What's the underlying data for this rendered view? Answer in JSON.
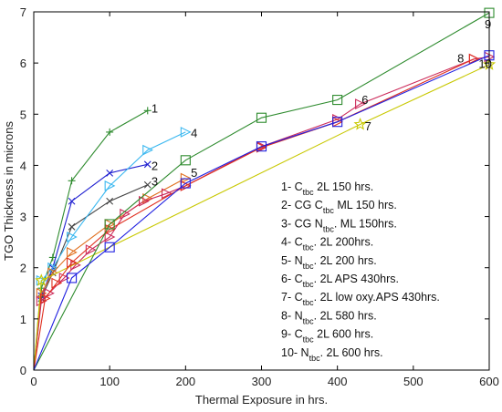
{
  "chart_data": {
    "type": "line",
    "title": "",
    "xlabel": "Thermal Exposure in hrs.",
    "ylabel": "TGO Thickness in microns",
    "xlim": [
      0,
      600
    ],
    "ylim": [
      0,
      7
    ],
    "xticks": [
      0,
      100,
      200,
      300,
      400,
      500,
      600
    ],
    "yticks": [
      0,
      1,
      2,
      3,
      4,
      5,
      6,
      7
    ],
    "grid": false,
    "legend_position": "lower-right",
    "legend": [
      {
        "number": "1- ",
        "main": "C",
        "sub": "tbc",
        "rest": " 2L 150 hrs."
      },
      {
        "number": "2- ",
        "main": "CG C",
        "sub": "tbc",
        "rest": " ML 150 hrs."
      },
      {
        "number": "3- ",
        "main": "CG N",
        "sub": "tbc",
        "rest": ". ML 150hrs."
      },
      {
        "number": "4- ",
        "main": "C",
        "sub": "tbc",
        "rest": ". 2L  200hrs."
      },
      {
        "number": "5- ",
        "main": "N",
        "sub": "tbc",
        "rest": ". 2L  200 hrs."
      },
      {
        "number": "6- ",
        "main": "C",
        "sub": "tbc",
        "rest": ". 2L APS 430hrs."
      },
      {
        "number": "7- ",
        "main": "C",
        "sub": "tbc",
        "rest": ". 2L low oxy.APS 430hrs."
      },
      {
        "number": "8- ",
        "main": "N",
        "sub": "tbc",
        "rest": ". 2L 580 hrs."
      },
      {
        "number": "9- ",
        "main": "C",
        "sub": "tbc",
        "rest": " 2L 600 hrs."
      },
      {
        "number": "10- ",
        "main": "N",
        "sub": "tbc",
        "rest": ". 2L 600 hrs."
      }
    ],
    "series": [
      {
        "label": "1",
        "color": "#2e8b2e",
        "marker": "plus",
        "x": [
          0,
          10,
          25,
          50,
          100,
          150
        ],
        "y": [
          0,
          1.6,
          2.2,
          3.7,
          4.65,
          5.07
        ]
      },
      {
        "label": "2",
        "color": "#1f1fd0",
        "marker": "x",
        "x": [
          0,
          10,
          25,
          50,
          100,
          150
        ],
        "y": [
          0,
          1.45,
          2.0,
          3.3,
          3.85,
          4.02
        ]
      },
      {
        "label": "3",
        "color": "#444444",
        "marker": "x",
        "x": [
          0,
          10,
          25,
          50,
          100,
          150
        ],
        "y": [
          0,
          1.4,
          1.9,
          2.8,
          3.3,
          3.62
        ]
      },
      {
        "label": "4",
        "color": "#3bb8f0",
        "marker": "tri-right",
        "x": [
          0,
          10,
          25,
          50,
          100,
          150,
          200
        ],
        "y": [
          0,
          1.75,
          2.0,
          2.6,
          3.6,
          4.3,
          4.65
        ]
      },
      {
        "label": "5",
        "color": "#e07020",
        "marker": "tri-right",
        "x": [
          0,
          10,
          25,
          50,
          100,
          150,
          200
        ],
        "y": [
          0,
          1.5,
          1.9,
          2.3,
          2.85,
          3.35,
          3.75
        ]
      },
      {
        "label": "6",
        "color": "#cc2a5a",
        "marker": "tri-right",
        "x": [
          0,
          10,
          20,
          40,
          55,
          75,
          100,
          120,
          145,
          175,
          200,
          300,
          400,
          430,
          580,
          600
        ],
        "y": [
          0,
          1.35,
          1.5,
          1.8,
          2.05,
          2.35,
          2.6,
          3.05,
          3.3,
          3.45,
          3.6,
          4.37,
          4.9,
          5.2,
          6.08,
          6.12
        ]
      },
      {
        "label": "7",
        "color": "#c8c800",
        "marker": "star",
        "x": [
          0,
          10,
          430,
          600
        ],
        "y": [
          0,
          1.75,
          4.8,
          5.97
        ]
      },
      {
        "label": "8",
        "color": "#e03020",
        "marker": "tri-right",
        "x": [
          0,
          15,
          30,
          50,
          100,
          200,
          300,
          400,
          580
        ],
        "y": [
          0,
          1.4,
          1.7,
          2.1,
          2.75,
          3.6,
          4.35,
          4.85,
          6.08
        ]
      },
      {
        "label": "9",
        "color": "#2e8b2e",
        "marker": "square",
        "x": [
          0,
          100,
          200,
          300,
          400,
          600
        ],
        "y": [
          0,
          2.85,
          4.1,
          4.93,
          5.28,
          6.98
        ]
      },
      {
        "label": "10",
        "color": "#2020e0",
        "marker": "square",
        "x": [
          0,
          50,
          100,
          200,
          300,
          400,
          600
        ],
        "y": [
          0,
          1.8,
          2.4,
          3.65,
          4.37,
          4.85,
          6.15
        ]
      }
    ],
    "series_number_labels": [
      {
        "text": "1",
        "x": 155,
        "y": 5.1
      },
      {
        "text": "2",
        "x": 155,
        "y": 3.98
      },
      {
        "text": "3",
        "x": 155,
        "y": 3.68
      },
      {
        "text": "4",
        "x": 207,
        "y": 4.62
      },
      {
        "text": "5",
        "x": 207,
        "y": 3.85
      },
      {
        "text": "6",
        "x": 432,
        "y": 5.27
      },
      {
        "text": "7",
        "x": 436,
        "y": 4.76
      },
      {
        "text": "8",
        "x": 558,
        "y": 6.08
      },
      {
        "text": "9",
        "x": 594,
        "y": 6.75
      },
      {
        "text": "10",
        "x": 586,
        "y": 5.98
      }
    ]
  }
}
